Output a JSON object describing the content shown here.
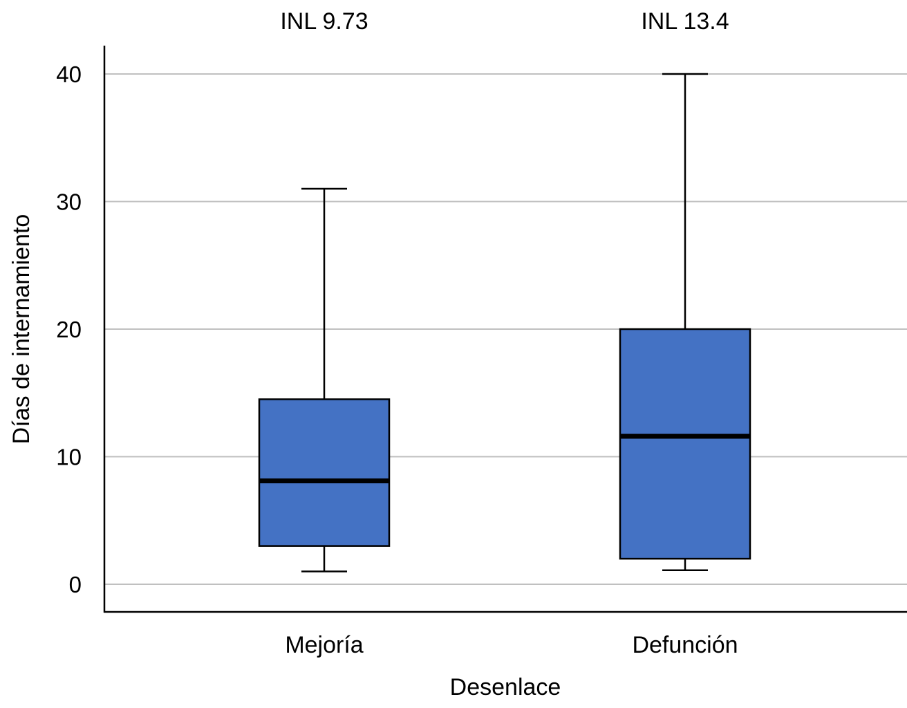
{
  "chart_data": {
    "type": "boxplot",
    "title": "",
    "xlabel": "Desenlace",
    "ylabel": "Días de internamiento",
    "ylim": [
      0,
      40
    ],
    "yticks": [
      0,
      10,
      20,
      30,
      40
    ],
    "ytick_labels": [
      "0",
      "10",
      "20",
      "30",
      "40"
    ],
    "grid": true,
    "categories": [
      "Mejoría",
      "Defunción"
    ],
    "annotations": [
      "INL 9.73",
      "INL 13.4"
    ],
    "boxes": [
      {
        "category": "Mejoría",
        "min": 1.0,
        "q1": 3.0,
        "median": 8.1,
        "q3": 14.5,
        "max": 31.0,
        "annotation": "INL 9.73"
      },
      {
        "category": "Defunción",
        "min": 1.1,
        "q1": 2.0,
        "median": 11.6,
        "q3": 20.0,
        "max": 40.0,
        "annotation": "INL 13.4"
      }
    ],
    "box_color": "#4472c4",
    "grid_color": "#c0c0c0"
  }
}
